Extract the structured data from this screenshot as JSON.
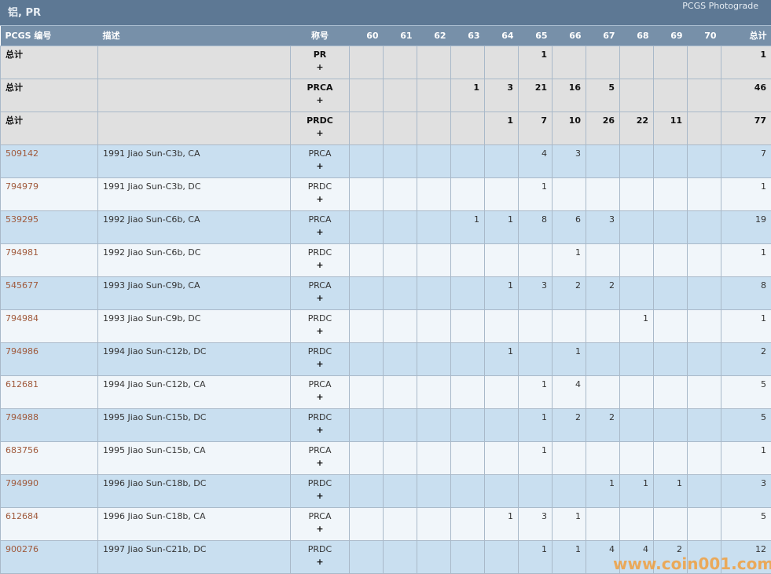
{
  "header": {
    "title": "铝, PR",
    "brand": "PCGS Photograde"
  },
  "columns": {
    "pcgs": "PCGS 编号",
    "desc": "描述",
    "designation": "称号",
    "grades": [
      "60",
      "61",
      "62",
      "63",
      "64",
      "65",
      "66",
      "67",
      "68",
      "69",
      "70"
    ],
    "total": "总计"
  },
  "totals": [
    {
      "label": "总计",
      "designation": "PR",
      "counts": [
        "",
        "",
        "",
        "",
        "",
        "1",
        "",
        "",
        "",
        "",
        ""
      ],
      "total": "1"
    },
    {
      "label": "总计",
      "designation": "PRCA",
      "counts": [
        "",
        "",
        "",
        "1",
        "3",
        "21",
        "16",
        "5",
        "",
        "",
        ""
      ],
      "total": "46"
    },
    {
      "label": "总计",
      "designation": "PRDC",
      "counts": [
        "",
        "",
        "",
        "",
        "1",
        "7",
        "10",
        "26",
        "22",
        "11",
        ""
      ],
      "total": "77"
    }
  ],
  "rows": [
    {
      "pcgs": "509142",
      "desc": "1991 Jiao Sun-C3b, CA",
      "designation": "PRCA",
      "counts": [
        "",
        "",
        "",
        "",
        "",
        "4",
        "3",
        "",
        "",
        "",
        ""
      ],
      "total": "7"
    },
    {
      "pcgs": "794979",
      "desc": "1991 Jiao Sun-C3b, DC",
      "designation": "PRDC",
      "counts": [
        "",
        "",
        "",
        "",
        "",
        "1",
        "",
        "",
        "",
        "",
        ""
      ],
      "total": "1"
    },
    {
      "pcgs": "539295",
      "desc": "1992 Jiao Sun-C6b, CA",
      "designation": "PRCA",
      "counts": [
        "",
        "",
        "",
        "1",
        "1",
        "8",
        "6",
        "3",
        "",
        "",
        ""
      ],
      "total": "19"
    },
    {
      "pcgs": "794981",
      "desc": "1992 Jiao Sun-C6b, DC",
      "designation": "PRDC",
      "counts": [
        "",
        "",
        "",
        "",
        "",
        "",
        "1",
        "",
        "",
        "",
        ""
      ],
      "total": "1"
    },
    {
      "pcgs": "545677",
      "desc": "1993 Jiao Sun-C9b, CA",
      "designation": "PRCA",
      "counts": [
        "",
        "",
        "",
        "",
        "1",
        "3",
        "2",
        "2",
        "",
        "",
        ""
      ],
      "total": "8"
    },
    {
      "pcgs": "794984",
      "desc": "1993 Jiao Sun-C9b, DC",
      "designation": "PRDC",
      "counts": [
        "",
        "",
        "",
        "",
        "",
        "",
        "",
        "",
        "1",
        "",
        ""
      ],
      "total": "1"
    },
    {
      "pcgs": "794986",
      "desc": "1994 Jiao Sun-C12b, DC",
      "designation": "PRDC",
      "counts": [
        "",
        "",
        "",
        "",
        "1",
        "",
        "1",
        "",
        "",
        "",
        ""
      ],
      "total": "2"
    },
    {
      "pcgs": "612681",
      "desc": "1994 Jiao Sun-C12b, CA",
      "designation": "PRCA",
      "counts": [
        "",
        "",
        "",
        "",
        "",
        "1",
        "4",
        "",
        "",
        "",
        ""
      ],
      "total": "5"
    },
    {
      "pcgs": "794988",
      "desc": "1995 Jiao Sun-C15b, DC",
      "designation": "PRDC",
      "counts": [
        "",
        "",
        "",
        "",
        "",
        "1",
        "2",
        "2",
        "",
        "",
        ""
      ],
      "total": "5"
    },
    {
      "pcgs": "683756",
      "desc": "1995 Jiao Sun-C15b, CA",
      "designation": "PRCA",
      "counts": [
        "",
        "",
        "",
        "",
        "",
        "1",
        "",
        "",
        "",
        "",
        ""
      ],
      "total": "1"
    },
    {
      "pcgs": "794990",
      "desc": "1996 Jiao Sun-C18b, DC",
      "designation": "PRDC",
      "counts": [
        "",
        "",
        "",
        "",
        "",
        "",
        "",
        "1",
        "1",
        "1",
        ""
      ],
      "total": "3"
    },
    {
      "pcgs": "612684",
      "desc": "1996 Jiao Sun-C18b, CA",
      "designation": "PRCA",
      "counts": [
        "",
        "",
        "",
        "",
        "1",
        "3",
        "1",
        "",
        "",
        "",
        ""
      ],
      "total": "5"
    },
    {
      "pcgs": "900276",
      "desc": "1997 Jiao Sun-C21b, DC",
      "designation": "PRDC",
      "counts": [
        "",
        "",
        "",
        "",
        "",
        "1",
        "1",
        "4",
        "4",
        "2",
        ""
      ],
      "total": "12"
    }
  ],
  "plus_label": "+",
  "watermark": "www.coin001.com"
}
